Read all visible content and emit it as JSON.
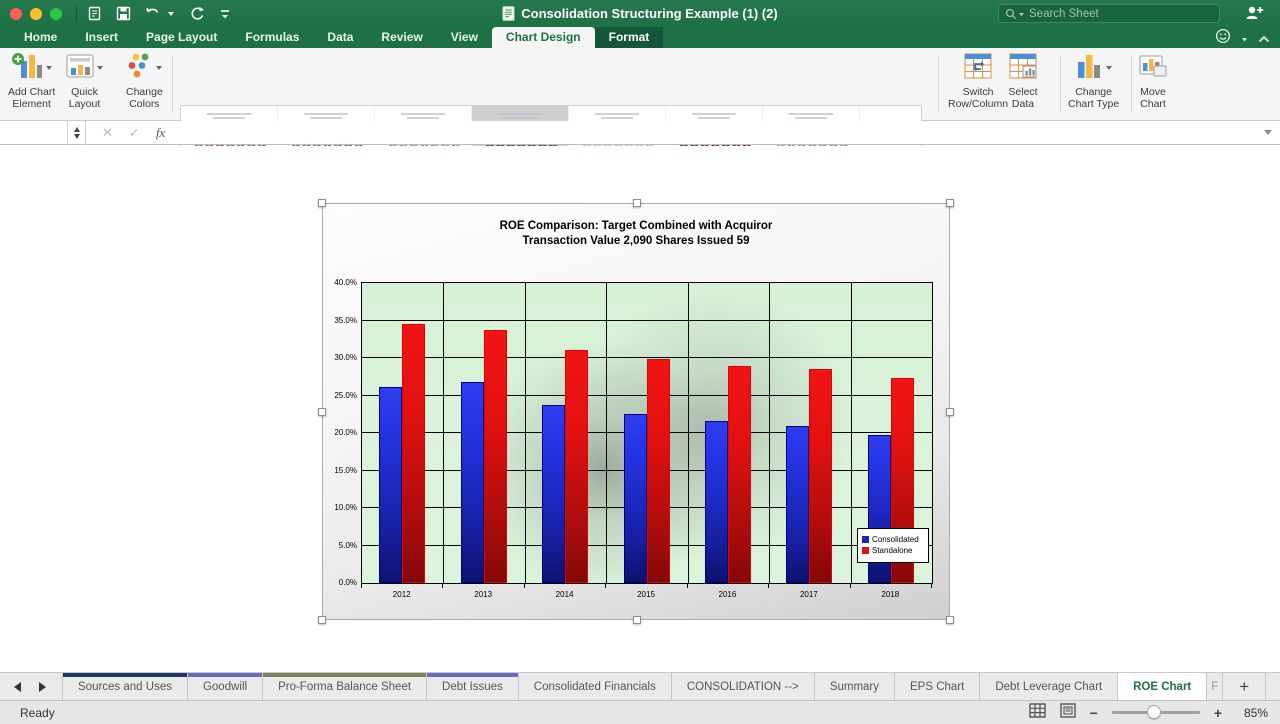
{
  "titlebar": {
    "title": "Consolidation Structuring Example (1) (2)",
    "search_placeholder": "Search Sheet"
  },
  "ribbon_tabs": [
    {
      "label": "Home"
    },
    {
      "label": "Insert"
    },
    {
      "label": "Page Layout"
    },
    {
      "label": "Formulas"
    },
    {
      "label": "Data"
    },
    {
      "label": "Review"
    },
    {
      "label": "View"
    },
    {
      "label": "Chart Design",
      "active": true
    },
    {
      "label": "Format",
      "contextual": true
    }
  ],
  "ribbon": {
    "left_buttons": [
      {
        "name": "add-chart-element",
        "label": "Add Chart\nElement",
        "icon": "add-chart-element-icon",
        "dropdown": true
      },
      {
        "name": "quick-layout",
        "label": "Quick\nLayout",
        "icon": "quick-layout-icon",
        "dropdown": true
      },
      {
        "name": "change-colors",
        "label": "Change\nColors",
        "icon": "change-colors-icon",
        "dropdown": true
      }
    ],
    "gallery": {
      "thumb_count": 7,
      "selected_index": 3
    },
    "right_buttons": [
      {
        "name": "switch-row-column",
        "label": "Switch\nRow/Column",
        "icon": "switch-row-column-icon",
        "dropdown": false
      },
      {
        "name": "select-data",
        "label": "Select\nData",
        "icon": "select-data-icon",
        "dropdown": false
      },
      {
        "name": "change-chart-type",
        "label": "Change\nChart Type",
        "icon": "change-chart-type-icon",
        "dropdown": true
      },
      {
        "name": "move-chart",
        "label": "Move\nChart",
        "icon": "move-chart-icon",
        "dropdown": false
      }
    ]
  },
  "formula_bar": {
    "name_box": "",
    "formula": ""
  },
  "chart_data": {
    "type": "bar",
    "title_line1": "ROE Comparison: Target Combined with Acquiror",
    "title_line2": "Transaction Value 2,090 Shares Issued 59",
    "categories": [
      "2012",
      "2013",
      "2014",
      "2015",
      "2016",
      "2017",
      "2018"
    ],
    "series": [
      {
        "name": "Consolidated",
        "color": "#1a23c8",
        "values": [
          26.2,
          26.8,
          23.7,
          22.6,
          21.6,
          21.0,
          19.7
        ]
      },
      {
        "name": "Standalone",
        "color": "#e81111",
        "values": [
          34.5,
          33.7,
          31.1,
          29.9,
          28.9,
          28.6,
          27.3
        ]
      }
    ],
    "ylim": [
      0,
      40
    ],
    "ytick_step": 5,
    "ytick_suffix": "%",
    "grid": true,
    "legend_position": "inside-right",
    "plot_bg": "#d9f2d9"
  },
  "sheet_tab_bar": {
    "tabs": [
      {
        "label": "Sources and Uses",
        "strip": "#1f3864"
      },
      {
        "label": "Goodwill",
        "strip": "#6b69c3"
      },
      {
        "label": "Pro-Forma Balance Sheet",
        "strip": "#7f7f60"
      },
      {
        "label": "Debt Issues",
        "strip": "#6b69c3"
      },
      {
        "label": "Consolidated Financials"
      },
      {
        "label": "CONSOLIDATION -->"
      },
      {
        "label": "Summary"
      },
      {
        "label": "EPS Chart"
      },
      {
        "label": "Debt Leverage Chart"
      },
      {
        "label": "ROE Chart",
        "active": true
      },
      {
        "label": "F",
        "partial": true
      }
    ],
    "add_label": "+"
  },
  "status_bar": {
    "ready": "Ready",
    "zoom_level": "85%"
  }
}
